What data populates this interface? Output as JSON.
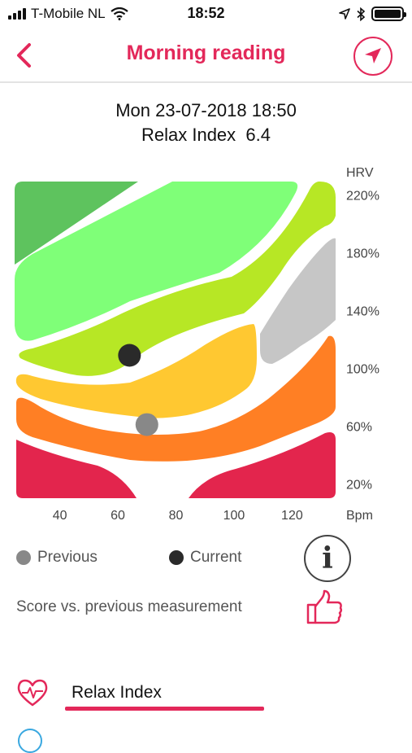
{
  "status_bar": {
    "carrier": "T-Mobile NL",
    "time": "18:52",
    "icons": [
      "signal-icon",
      "wifi-icon",
      "location-arrow-icon",
      "bluetooth-icon",
      "battery-icon"
    ]
  },
  "nav": {
    "title": "Morning reading",
    "back_icon": "chevron-left-icon",
    "action_icon": "navigation-arrow-icon",
    "accent_color": "#e3285a"
  },
  "header": {
    "date": "Mon 23-07-2018 18:50",
    "relax_label": "Relax Index",
    "relax_value": "6.4"
  },
  "chart_data": {
    "type": "scatter",
    "title": "",
    "xlabel": "Bpm",
    "ylabel": "HRV",
    "x_ticks": [
      "40",
      "60",
      "80",
      "100",
      "120"
    ],
    "y_ticks": [
      "220%",
      "180%",
      "140%",
      "100%",
      "60%",
      "20%"
    ],
    "xlim": [
      25,
      135
    ],
    "ylim": [
      10,
      230
    ],
    "zones": [
      {
        "color": "#5ec35e"
      },
      {
        "color": "#7fff78"
      },
      {
        "color": "#b7e725"
      },
      {
        "color": "#c6c6c6"
      },
      {
        "color": "#ffc831"
      },
      {
        "color": "#ff7f24"
      },
      {
        "color": "#e3254d"
      }
    ],
    "series": [
      {
        "name": "Previous",
        "color": "#888888",
        "points": [
          [
            70,
            61
          ]
        ]
      },
      {
        "name": "Current",
        "color": "#2a2a2a",
        "points": [
          [
            64,
            109
          ]
        ]
      }
    ]
  },
  "legend": {
    "previous_label": "Previous",
    "current_label": "Current",
    "previous_color": "#888888",
    "current_color": "#2a2a2a",
    "info_glyph": "i"
  },
  "score": {
    "label": "Score vs. previous measurement",
    "icon": "thumbs-up-icon"
  },
  "tabs": {
    "relax_index_label": "Relax Index",
    "icon": "heart-pulse-icon"
  }
}
